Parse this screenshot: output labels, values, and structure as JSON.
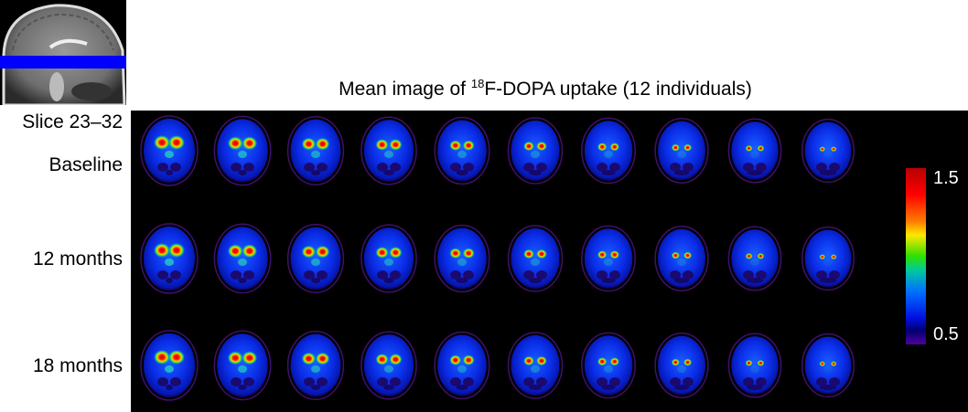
{
  "title": {
    "prefix": "Mean image of ",
    "superscript": "18",
    "suffix": "F-DOPA uptake (12 individuals)"
  },
  "slice_label": "Slice 23–32",
  "rows": [
    {
      "label": "Baseline"
    },
    {
      "label": "12 months"
    },
    {
      "label": "18 months"
    }
  ],
  "colorbar": {
    "max": "1.5",
    "min": "0.5",
    "colormap": "spectral (purple-blue-green-yellow-red)"
  },
  "colors": {
    "panel_background": "#000000",
    "slice_marker": "#0000ff"
  }
}
